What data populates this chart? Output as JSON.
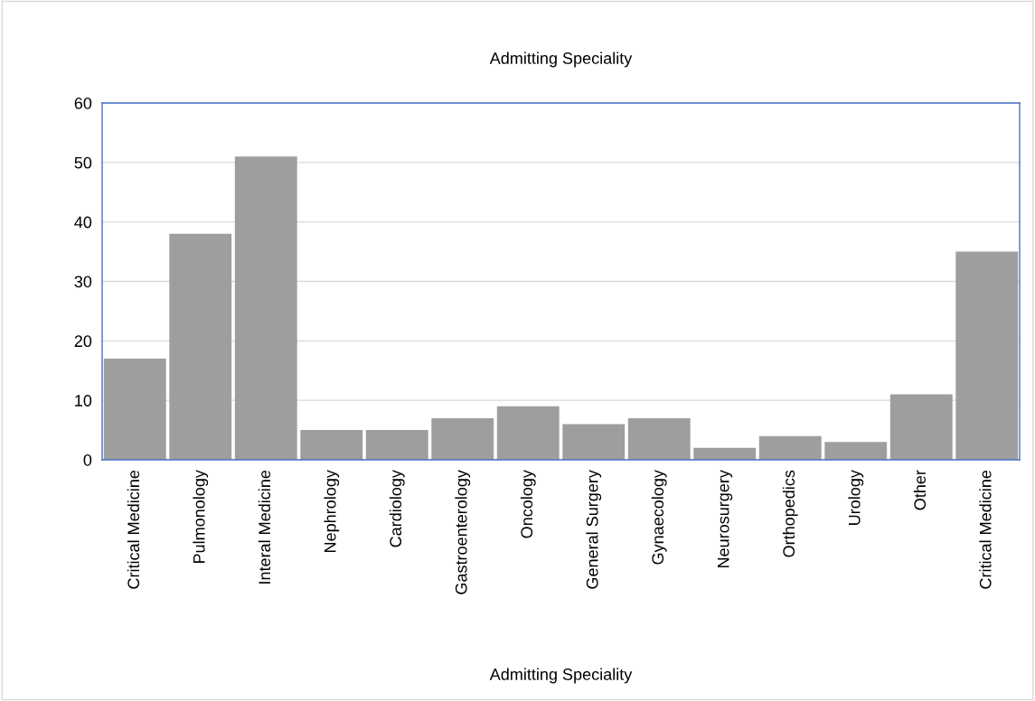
{
  "chart_data": {
    "type": "bar",
    "title": "Admitting Speciality",
    "xlabel": "Admitting Speciality",
    "categories": [
      "Critical Medicine",
      "Pulmonology",
      "Interal Medicine",
      "Nephrology",
      "Cardiology",
      "Gastroenterology",
      "Oncology",
      "General Surgery",
      "Gynaecology",
      "Neurosurgery",
      "Orthopedics",
      "Urology",
      "Other",
      "Critical Medicine"
    ],
    "values": [
      17,
      38,
      51,
      5,
      5,
      7,
      9,
      6,
      7,
      2,
      4,
      3,
      11,
      35
    ],
    "color": "#9e9e9e",
    "ylim": [
      0,
      60
    ],
    "yticks": [
      0,
      10,
      20,
      30,
      40,
      50,
      60
    ],
    "grid": "y"
  }
}
